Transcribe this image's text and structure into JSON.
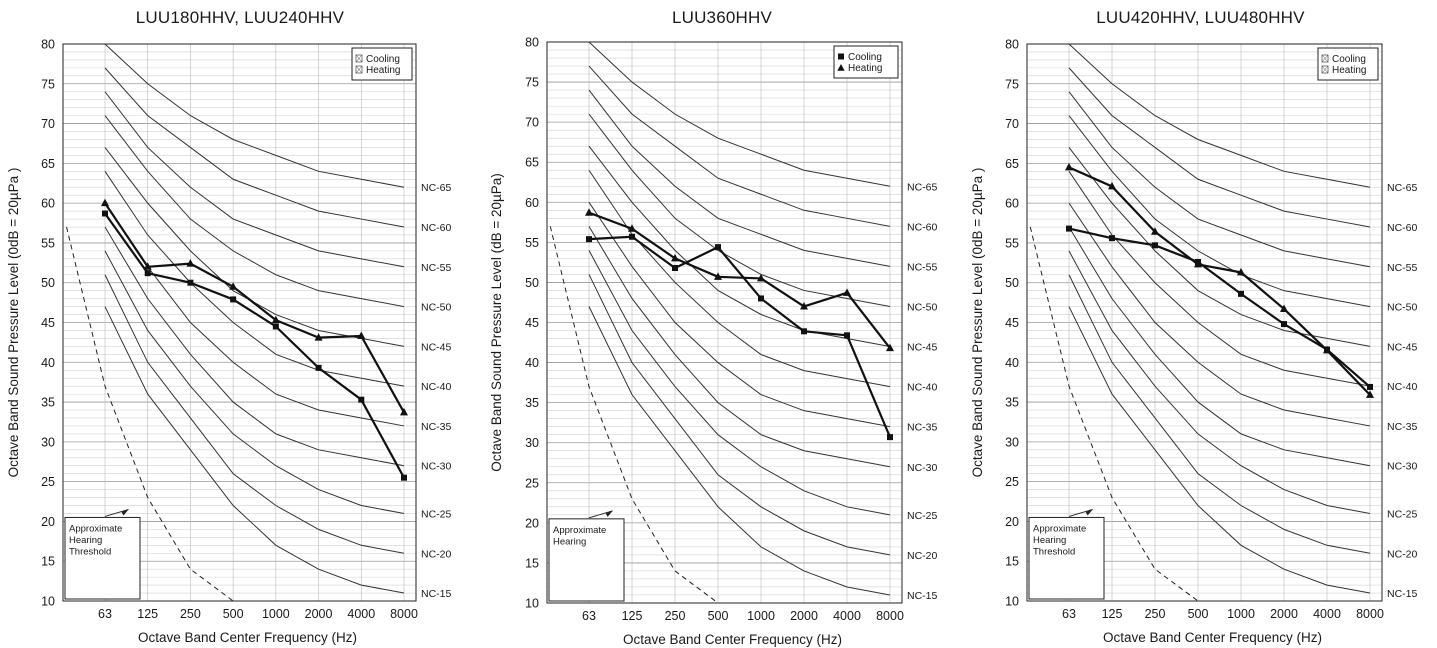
{
  "chart_data": [
    {
      "type": "line",
      "title": "LUU180HHV, LUU240HHV",
      "xlabel": "Octave Band Center Frequency (Hz)",
      "ylabel": "Octave Band Sound Pressure Level (0dB = 20µPa )",
      "x_categories": [
        "63",
        "125",
        "250",
        "500",
        "1000",
        "2000",
        "4000",
        "8000"
      ],
      "ylim": [
        10,
        80
      ],
      "y_ticks": [
        10,
        15,
        20,
        25,
        30,
        35,
        40,
        45,
        50,
        55,
        60,
        65,
        70,
        75,
        80
      ],
      "grid": true,
      "legend_position": "top-right",
      "legend_style": "glyph-boxes",
      "series": [
        {
          "name": "Cooling",
          "marker": "square",
          "values": [
            58.7,
            51.2,
            50.0,
            47.9,
            44.5,
            39.3,
            35.3,
            25.5
          ]
        },
        {
          "name": "Heating",
          "marker": "triangle",
          "values": [
            60.0,
            52.0,
            52.4,
            49.5,
            45.3,
            43.1,
            43.3,
            33.7
          ]
        }
      ],
      "nc_curves": [
        {
          "name": "NC-65",
          "values": [
            80,
            75,
            71,
            68,
            66,
            64,
            63,
            62
          ]
        },
        {
          "name": "NC-60",
          "values": [
            77,
            71,
            67,
            63,
            61,
            59,
            58,
            57
          ]
        },
        {
          "name": "NC-55",
          "values": [
            74,
            67,
            62,
            58,
            56,
            54,
            53,
            52
          ]
        },
        {
          "name": "NC-50",
          "values": [
            71,
            64,
            58,
            54,
            51,
            49,
            48,
            47
          ]
        },
        {
          "name": "NC-45",
          "values": [
            67,
            60,
            54,
            49,
            46,
            44,
            43,
            42
          ]
        },
        {
          "name": "NC-40",
          "values": [
            64,
            56,
            50,
            45,
            41,
            39,
            38,
            37
          ]
        },
        {
          "name": "NC-35",
          "values": [
            60,
            52,
            45,
            40,
            36,
            34,
            33,
            32
          ]
        },
        {
          "name": "NC-30",
          "values": [
            57,
            48,
            41,
            35,
            31,
            29,
            28,
            27
          ]
        },
        {
          "name": "NC-25",
          "values": [
            54,
            44,
            37,
            31,
            27,
            24,
            22,
            21
          ]
        },
        {
          "name": "NC-20",
          "values": [
            51,
            40,
            33,
            26,
            22,
            19,
            17,
            16
          ]
        },
        {
          "name": "NC-15",
          "values": [
            47,
            36,
            29,
            22,
            17,
            14,
            12,
            11
          ]
        }
      ],
      "threshold_curve": {
        "x": [
          -0.9,
          0,
          1,
          2,
          3
        ],
        "values": [
          57,
          37,
          23,
          14,
          10
        ]
      },
      "annotation": {
        "text": [
          "Approximate",
          "Hearing",
          "Threshold"
        ]
      }
    },
    {
      "type": "line",
      "title": "LUU360HHV",
      "xlabel": "Octave Band Center Frequency (Hz)",
      "ylabel": "Octave Band Sound Pressure Level (dB = 20µPa)",
      "x_categories": [
        "63",
        "125",
        "250",
        "500",
        "1000",
        "2000",
        "4000",
        "8000"
      ],
      "ylim": [
        10,
        80
      ],
      "y_ticks": [
        10,
        15,
        20,
        25,
        30,
        35,
        40,
        45,
        50,
        55,
        60,
        65,
        70,
        75,
        80
      ],
      "grid": true,
      "legend_position": "top-right",
      "legend_style": "filled-markers",
      "series": [
        {
          "name": "Cooling",
          "marker": "square",
          "values": [
            55.4,
            55.7,
            51.8,
            54.4,
            48.0,
            43.9,
            43.4,
            30.7
          ]
        },
        {
          "name": "Heating",
          "marker": "triangle",
          "values": [
            58.7,
            56.7,
            53.0,
            50.7,
            50.5,
            47.0,
            48.7,
            41.8
          ]
        }
      ],
      "nc_curves": [
        {
          "name": "NC-65",
          "values": [
            80,
            75,
            71,
            68,
            66,
            64,
            63,
            62
          ]
        },
        {
          "name": "NC-60",
          "values": [
            77,
            71,
            67,
            63,
            61,
            59,
            58,
            57
          ]
        },
        {
          "name": "NC-55",
          "values": [
            74,
            67,
            62,
            58,
            56,
            54,
            53,
            52
          ]
        },
        {
          "name": "NC-50",
          "values": [
            71,
            64,
            58,
            54,
            51,
            49,
            48,
            47
          ]
        },
        {
          "name": "NC-45",
          "values": [
            67,
            60,
            54,
            49,
            46,
            44,
            43,
            42
          ]
        },
        {
          "name": "NC-40",
          "values": [
            64,
            56,
            50,
            45,
            41,
            39,
            38,
            37
          ]
        },
        {
          "name": "NC-35",
          "values": [
            60,
            52,
            45,
            40,
            36,
            34,
            33,
            32
          ]
        },
        {
          "name": "NC-30",
          "values": [
            57,
            48,
            41,
            35,
            31,
            29,
            28,
            27
          ]
        },
        {
          "name": "NC-25",
          "values": [
            54,
            44,
            37,
            31,
            27,
            24,
            22,
            21
          ]
        },
        {
          "name": "NC-20",
          "values": [
            51,
            40,
            33,
            26,
            22,
            19,
            17,
            16
          ]
        },
        {
          "name": "NC-15",
          "values": [
            47,
            36,
            29,
            22,
            17,
            14,
            12,
            11
          ]
        }
      ],
      "threshold_curve": {
        "x": [
          -0.9,
          0,
          1,
          2,
          3
        ],
        "values": [
          57,
          37,
          23,
          14,
          10
        ]
      },
      "annotation": {
        "text": [
          "Approximate",
          "Hearing"
        ]
      }
    },
    {
      "type": "line",
      "title": "LUU420HHV, LUU480HHV",
      "xlabel": "Octave Band Center Frequency (Hz)",
      "ylabel": "Octave Band Sound Pressure Level (0dB = 20µPa )",
      "x_categories": [
        "63",
        "125",
        "250",
        "500",
        "1000",
        "2000",
        "4000",
        "8000"
      ],
      "ylim": [
        10,
        80
      ],
      "y_ticks": [
        10,
        15,
        20,
        25,
        30,
        35,
        40,
        45,
        50,
        55,
        60,
        65,
        70,
        75,
        80
      ],
      "grid": true,
      "legend_position": "top-right",
      "legend_style": "glyph-boxes",
      "series": [
        {
          "name": "Cooling",
          "marker": "square",
          "values": [
            56.8,
            55.6,
            54.7,
            52.6,
            48.6,
            44.8,
            41.6,
            36.9
          ]
        },
        {
          "name": "Heating",
          "marker": "triangle",
          "values": [
            64.5,
            62.1,
            56.4,
            52.3,
            51.3,
            46.7,
            41.5,
            35.9
          ]
        }
      ],
      "nc_curves": [
        {
          "name": "NC-65",
          "values": [
            80,
            75,
            71,
            68,
            66,
            64,
            63,
            62
          ]
        },
        {
          "name": "NC-60",
          "values": [
            77,
            71,
            67,
            63,
            61,
            59,
            58,
            57
          ]
        },
        {
          "name": "NC-55",
          "values": [
            74,
            67,
            62,
            58,
            56,
            54,
            53,
            52
          ]
        },
        {
          "name": "NC-50",
          "values": [
            71,
            64,
            58,
            54,
            51,
            49,
            48,
            47
          ]
        },
        {
          "name": "NC-45",
          "values": [
            67,
            60,
            54,
            49,
            46,
            44,
            43,
            42
          ]
        },
        {
          "name": "NC-40",
          "values": [
            64,
            56,
            50,
            45,
            41,
            39,
            38,
            37
          ]
        },
        {
          "name": "NC-35",
          "values": [
            60,
            52,
            45,
            40,
            36,
            34,
            33,
            32
          ]
        },
        {
          "name": "NC-30",
          "values": [
            57,
            48,
            41,
            35,
            31,
            29,
            28,
            27
          ]
        },
        {
          "name": "NC-25",
          "values": [
            54,
            44,
            37,
            31,
            27,
            24,
            22,
            21
          ]
        },
        {
          "name": "NC-20",
          "values": [
            51,
            40,
            33,
            26,
            22,
            19,
            17,
            16
          ]
        },
        {
          "name": "NC-15",
          "values": [
            47,
            36,
            29,
            22,
            17,
            14,
            12,
            11
          ]
        }
      ],
      "threshold_curve": {
        "x": [
          -0.9,
          0,
          1,
          2,
          3
        ],
        "values": [
          57,
          37,
          23,
          14,
          10
        ]
      },
      "annotation": {
        "text": [
          "Approximate",
          "Hearing",
          "Threshold"
        ]
      }
    }
  ]
}
